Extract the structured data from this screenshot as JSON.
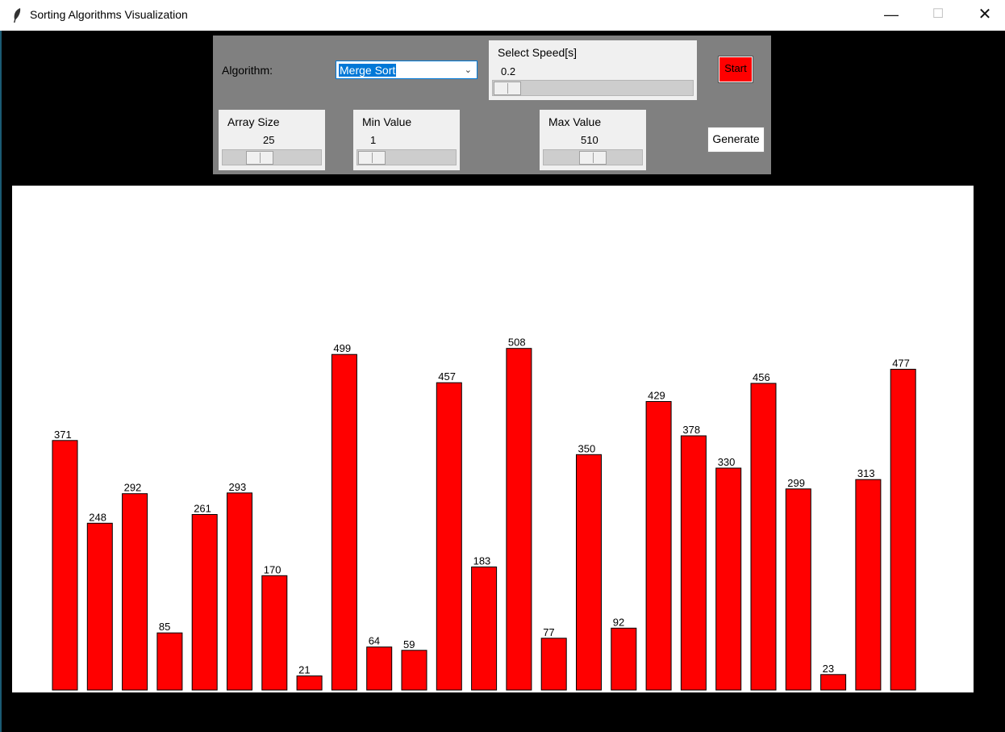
{
  "window": {
    "title": "Sorting Algorithms Visualization",
    "minimize_glyph": "—",
    "maximize_glyph": "☐",
    "close_glyph": "✕",
    "icon": "feather-icon"
  },
  "controls": {
    "algorithm_label": "Algorithm:",
    "algorithm_value": "Merge Sort",
    "speed": {
      "label": "Select Speed[s]",
      "value": "0.2",
      "level": 0
    },
    "array_size": {
      "label": "Array Size",
      "value": "25",
      "level": 0.33
    },
    "min_value": {
      "label": "Min Value",
      "value": "1",
      "level": 0
    },
    "max_value": {
      "label": "Max Value",
      "value": "510",
      "level": 0.5
    },
    "start_label": "Start",
    "generate_label": "Generate",
    "colors": {
      "panel": "#808080",
      "start": "#ff0000"
    }
  },
  "chart_data": {
    "type": "bar",
    "values": [
      371,
      248,
      292,
      85,
      261,
      293,
      170,
      21,
      499,
      64,
      59,
      457,
      183,
      508,
      77,
      350,
      92,
      429,
      378,
      330,
      456,
      299,
      23,
      313,
      477
    ],
    "bar_color": "#ff0000",
    "ylim": [
      0,
      510
    ]
  }
}
